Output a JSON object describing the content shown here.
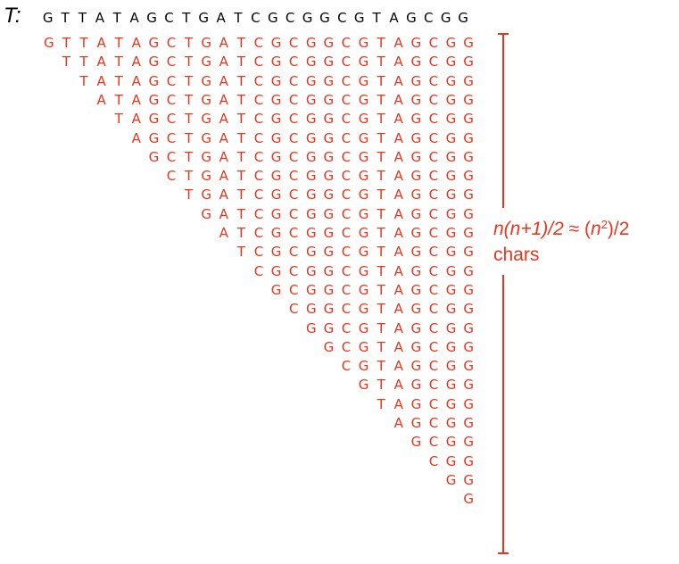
{
  "text_label": "T:",
  "text": "GTTATAGCTGATCGCGGCGTAGCGG",
  "suffixes": [
    "GTTATAGCTGATCGCGGCGTAGCGG",
    "TTATAGCTGATCGCGGCGTAGCGG",
    "TATAGCTGATCGCGGCGTAGCGG",
    "ATAGCTGATCGCGGCGTAGCGG",
    "TAGCTGATCGCGGCGTAGCGG",
    "AGCTGATCGCGGCGTAGCGG",
    "GCTGATCGCGGCGTAGCGG",
    "CTGATCGCGGCGTAGCGG",
    "TGATCGCGGCGTAGCGG",
    "GATCGCGGCGTAGCGG",
    "ATCGCGGCGTAGCGG",
    "TCGCGGCGTAGCGG",
    "CGCGGCGTAGCGG",
    "GCGGCGTAGCGG",
    "CGGCGTAGCGG",
    "GGCGTAGCGG",
    "GCGTAGCGG",
    "CGTAGCGG",
    "GTAGCGG",
    "TAGCGG",
    "AGCGG",
    "GCGG",
    "CGG",
    "GG",
    "G"
  ],
  "annotation": {
    "formula_part1": "n(n+1)/2",
    "approx": " ≈ (",
    "n": "n",
    "exponent": "2",
    "tail": ")/2",
    "chars": "chars"
  },
  "colors": {
    "text": "#000000",
    "suffix": "#e8361e"
  }
}
